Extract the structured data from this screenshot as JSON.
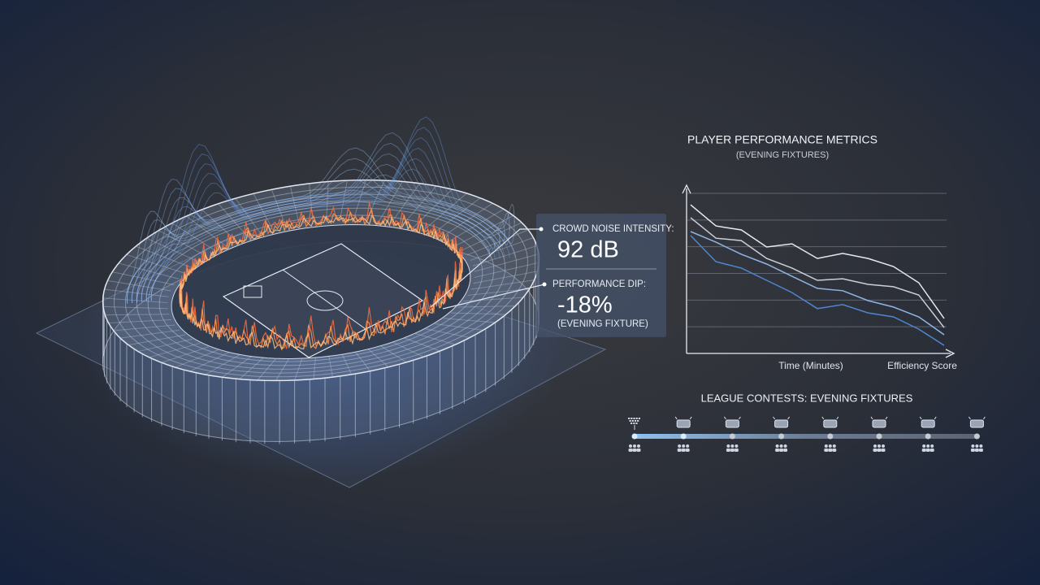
{
  "callout": {
    "noise_label": "CROWD NOISE INTENSITY:",
    "noise_value": "92 dB",
    "dip_label": "PERFORMANCE DIP:",
    "dip_value": "-18%",
    "note": "(EVENING FIXTURE)"
  },
  "chart_data": {
    "type": "line",
    "title": "PLAYER PERFORMANCE METRICS",
    "subtitle": "(EVENING FIXTURES)",
    "x_label": "Time (Minutes)",
    "y_label": "Efficiency Score",
    "x": [
      0,
      1,
      2,
      3,
      4,
      5,
      6,
      7,
      8,
      9,
      10
    ],
    "xlim": [
      0,
      10
    ],
    "ylim": [
      0,
      6
    ],
    "yticks": [
      1,
      2,
      3,
      4,
      5,
      6
    ],
    "grid": true,
    "series": [
      {
        "color": "#e6e9ef",
        "values": [
          5.57,
          4.78,
          4.63,
          3.99,
          4.11,
          3.56,
          3.75,
          3.56,
          3.26,
          2.65,
          1.31
        ]
      },
      {
        "color": "#c9d0dc",
        "values": [
          5.09,
          4.32,
          4.23,
          3.56,
          3.2,
          2.74,
          2.8,
          2.59,
          2.5,
          2.19,
          0.97
        ]
      },
      {
        "color": "#8fb4e6",
        "values": [
          4.57,
          4.17,
          3.72,
          3.35,
          2.89,
          2.44,
          2.35,
          1.98,
          1.74,
          1.37,
          0.7
        ]
      },
      {
        "color": "#4f86d0",
        "values": [
          4.42,
          3.44,
          3.2,
          2.74,
          2.28,
          1.68,
          1.83,
          1.52,
          1.37,
          0.91,
          0.3
        ]
      }
    ]
  },
  "timeline": {
    "title": "LEAGUE CONTESTS: EVENING FIXTURES"
  }
}
